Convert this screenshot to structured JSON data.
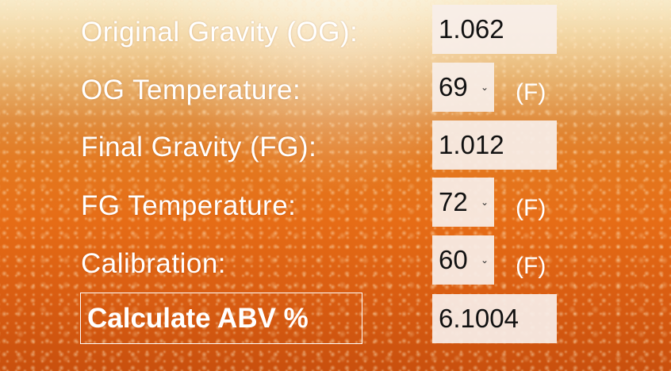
{
  "rows": [
    {
      "label": "Original Gravity (OG):",
      "value": "1.062"
    },
    {
      "label": "OG Temperature:",
      "value": "69",
      "unit": "(F)"
    },
    {
      "label": "Final Gravity (FG):",
      "value": "1.012"
    },
    {
      "label": "FG Temperature:",
      "value": "72",
      "unit": "(F)"
    },
    {
      "label": "Calibration:",
      "value": "60",
      "unit": "(F)"
    }
  ],
  "calculate_label": "Calculate ABV %",
  "result_value": "6.1004",
  "icons": {
    "dropdown": "chevron-down-icon"
  },
  "colors": {
    "text": "#ffffff",
    "field_bg": "#f8eee8",
    "beer": "#e66c16",
    "foam": "#f4e2b6"
  }
}
